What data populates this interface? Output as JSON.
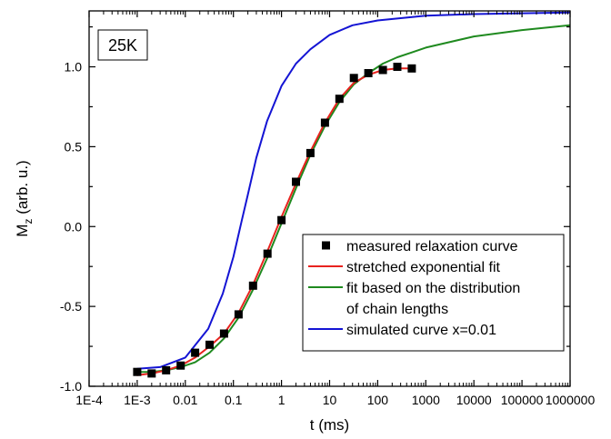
{
  "chart_data": {
    "type": "scatter",
    "title": "",
    "temperature_label": "25K",
    "xlabel": "t (ms)",
    "ylabel_main": "M",
    "ylabel_sub": "z",
    "ylabel_rest": " (arb. u.)",
    "xscale": "log",
    "xlim": [
      0.0001,
      1000000
    ],
    "ylim": [
      -1.0,
      1.35
    ],
    "x_tick_values": [
      0.0001,
      0.001,
      0.01,
      0.1,
      1,
      10,
      100,
      1000,
      10000,
      100000,
      1000000
    ],
    "x_tick_labels": [
      "1E-4",
      "1E-3",
      "0.01",
      "0.1",
      "1",
      "10",
      "100",
      "1000",
      "10000",
      "100000",
      "1000000"
    ],
    "y_tick_values": [
      -1.0,
      -0.5,
      0.0,
      0.5,
      1.0
    ],
    "y_tick_labels": [
      "-1.0",
      "-0.5",
      "0.0",
      "0.5",
      "1.0"
    ],
    "grid": false,
    "legend_position": "bottom-right",
    "series": [
      {
        "name": "measured relaxation curve",
        "kind": "markers",
        "color": "#000000",
        "x": [
          0.001,
          0.002,
          0.004,
          0.008,
          0.016,
          0.032,
          0.064,
          0.128,
          0.256,
          0.512,
          1,
          2,
          4,
          8,
          16,
          32,
          64,
          128,
          256,
          512
        ],
        "y": [
          -0.91,
          -0.92,
          -0.9,
          -0.87,
          -0.79,
          -0.74,
          -0.67,
          -0.55,
          -0.37,
          -0.17,
          0.04,
          0.28,
          0.46,
          0.65,
          0.8,
          0.93,
          0.96,
          0.98,
          1.0,
          0.99
        ]
      },
      {
        "name": "stretched exponential fit",
        "kind": "line",
        "color": "#e8231f",
        "x": [
          0.001,
          0.002,
          0.004,
          0.008,
          0.016,
          0.032,
          0.064,
          0.128,
          0.25,
          0.5,
          1,
          2,
          4,
          8,
          16,
          32,
          64,
          128,
          256,
          512
        ],
        "y": [
          -0.93,
          -0.92,
          -0.9,
          -0.87,
          -0.82,
          -0.75,
          -0.67,
          -0.54,
          -0.37,
          -0.16,
          0.06,
          0.27,
          0.47,
          0.65,
          0.8,
          0.9,
          0.95,
          0.98,
          0.99,
          0.99
        ]
      },
      {
        "name": "fit based on the distribution of chain lengths",
        "legend_lines": [
          "fit based on the distribution",
          "of chain lengths"
        ],
        "kind": "line",
        "color": "#1f8a1f",
        "x": [
          0.001,
          0.002,
          0.004,
          0.008,
          0.016,
          0.032,
          0.064,
          0.128,
          0.25,
          0.5,
          1,
          2,
          4,
          8,
          16,
          32,
          64,
          128,
          256,
          512,
          1000,
          10000,
          100000,
          1000000
        ],
        "y": [
          -0.91,
          -0.91,
          -0.9,
          -0.88,
          -0.85,
          -0.79,
          -0.7,
          -0.57,
          -0.4,
          -0.2,
          0.02,
          0.24,
          0.45,
          0.63,
          0.78,
          0.89,
          0.96,
          1.02,
          1.06,
          1.09,
          1.12,
          1.19,
          1.23,
          1.26
        ]
      },
      {
        "name": "simulated curve x=0.01",
        "kind": "line",
        "color": "#1414d4",
        "x": [
          0.001,
          0.003,
          0.01,
          0.03,
          0.06,
          0.1,
          0.15,
          0.2,
          0.3,
          0.5,
          1,
          2,
          4,
          10,
          30,
          100,
          1000,
          10000,
          100000,
          1000000
        ],
        "y": [
          -0.89,
          -0.88,
          -0.82,
          -0.64,
          -0.42,
          -0.19,
          0.04,
          0.2,
          0.43,
          0.66,
          0.88,
          1.02,
          1.11,
          1.2,
          1.26,
          1.29,
          1.32,
          1.33,
          1.335,
          1.34
        ]
      }
    ]
  }
}
